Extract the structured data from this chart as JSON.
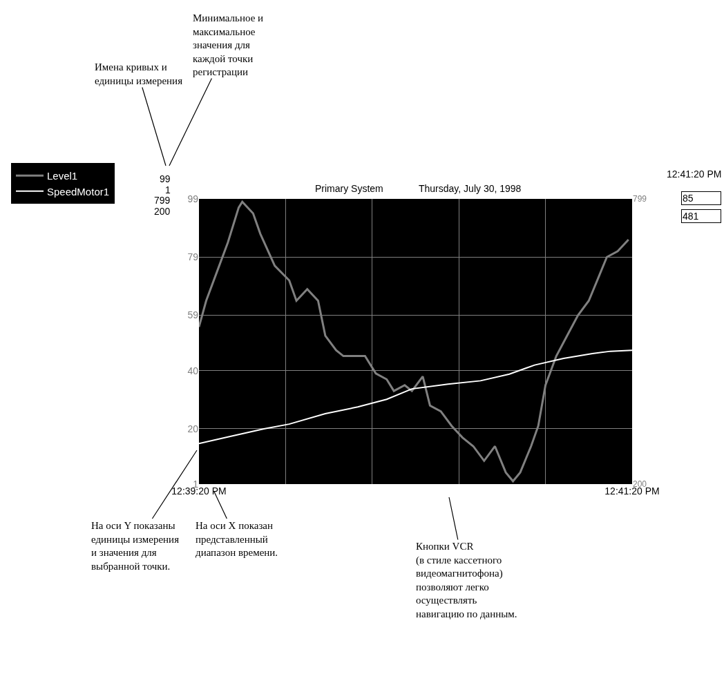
{
  "chart_data": {
    "type": "line",
    "title": "Primary System",
    "subtitle": "Thursday, July 30, 1998",
    "series": [
      {
        "name": "Level1",
        "color": "#808080",
        "x": [
          "1998-07-30T12:39:20",
          "1998-07-30T12:39:22",
          "1998-07-30T12:39:25",
          "1998-07-30T12:39:28",
          "1998-07-30T12:39:31",
          "1998-07-30T12:39:32",
          "1998-07-30T12:39:35",
          "1998-07-30T12:39:37",
          "1998-07-30T12:39:41",
          "1998-07-30T12:39:45",
          "1998-07-30T12:39:47",
          "1998-07-30T12:39:50",
          "1998-07-30T12:39:53",
          "1998-07-30T12:39:55",
          "1998-07-30T12:39:58",
          "1998-07-30T12:40:00",
          "1998-07-30T12:40:06",
          "1998-07-30T12:40:09",
          "1998-07-30T12:40:12",
          "1998-07-30T12:40:14",
          "1998-07-30T12:40:17",
          "1998-07-30T12:40:19",
          "1998-07-30T12:40:22",
          "1998-07-30T12:40:24",
          "1998-07-30T12:40:27",
          "1998-07-30T12:40:30",
          "1998-07-30T12:40:33",
          "1998-07-30T12:40:36",
          "1998-07-30T12:40:39",
          "1998-07-30T12:40:42",
          "1998-07-30T12:40:45",
          "1998-07-30T12:40:47",
          "1998-07-30T12:40:49",
          "1998-07-30T12:40:52",
          "1998-07-30T12:40:54",
          "1998-07-30T12:40:56",
          "1998-07-30T12:40:59",
          "1998-07-30T12:41:02",
          "1998-07-30T12:41:05",
          "1998-07-30T12:41:08",
          "1998-07-30T12:41:11",
          "1998-07-30T12:41:13",
          "1998-07-30T12:41:16",
          "1998-07-30T12:41:19"
        ],
        "values": [
          55,
          64,
          74,
          84,
          96,
          98,
          94,
          87,
          76,
          71,
          64,
          68,
          64,
          52,
          47,
          45,
          45,
          39,
          37,
          33,
          35,
          33,
          38,
          28,
          26,
          21,
          17,
          14,
          9,
          14,
          5,
          2,
          5,
          14,
          21,
          35,
          45,
          52,
          59,
          64,
          73,
          79,
          81,
          85
        ]
      },
      {
        "name": "SpeedMotor1",
        "color": "#ffffff",
        "axis": "y2",
        "x": [
          "1998-07-30T12:39:20",
          "1998-07-30T12:39:28",
          "1998-07-30T12:39:38",
          "1998-07-30T12:39:45",
          "1998-07-30T12:39:55",
          "1998-07-30T12:40:04",
          "1998-07-30T12:40:12",
          "1998-07-30T12:40:19",
          "1998-07-30T12:40:29",
          "1998-07-30T12:40:38",
          "1998-07-30T12:40:46",
          "1998-07-30T12:40:53",
          "1998-07-30T12:41:01",
          "1998-07-30T12:41:09",
          "1998-07-30T12:41:14",
          "1998-07-30T12:41:20"
        ],
        "values": [
          285,
          299,
          316,
          326,
          348,
          362,
          378,
          400,
          410,
          417,
          431,
          450,
          464,
          474,
          479,
          481
        ]
      }
    ],
    "xlim": [
      "1998-07-30T12:39:20",
      "1998-07-30T12:41:20"
    ],
    "xticks": [
      {
        "value": "1998-07-30T12:39:20",
        "label": "12:39:20 PM"
      },
      {
        "value": "1998-07-30T12:39:44",
        "label": null
      },
      {
        "value": "1998-07-30T12:40:08",
        "label": null
      },
      {
        "value": "1998-07-30T12:40:32",
        "label": null
      },
      {
        "value": "1998-07-30T12:40:56",
        "label": null
      },
      {
        "value": "1998-07-30T12:41:20",
        "label": "12:41:20 PM"
      }
    ],
    "ylim": [
      1,
      99
    ],
    "yticks": [
      1,
      20,
      40,
      59,
      79,
      99
    ],
    "y2lim": [
      200,
      799
    ],
    "y2ticks": [
      200,
      799
    ],
    "grid": true,
    "legend": "top left",
    "line_style": "solid",
    "marker": "none",
    "annotations": [
      "99",
      "1",
      "799",
      "200",
      "12:41:20 PM",
      "85",
      "481",
      "Имена кривых и\nединицы измерения",
      "Минимальное и\nмаксимальное\nзначения для\nкаждой точки\nрегистрации",
      "На оси Y показаны\nединицы измерения\nи значения для\nвыбранной точки.",
      "На оси X показан\nпредставленный\nдиапазон времени.",
      "Кнопки VCR\n(в стиле кассетного\nвидеомагнитофона)\nпозволяют легко\nосуществлять\nнавигацию по данным."
    ]
  }
}
